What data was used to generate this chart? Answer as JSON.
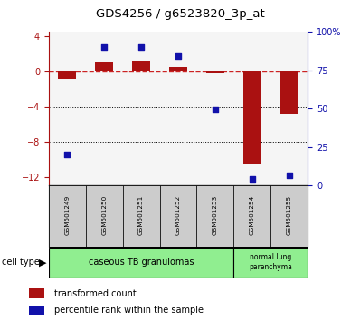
{
  "title": "GDS4256 / g6523820_3p_at",
  "samples": [
    "GSM501249",
    "GSM501250",
    "GSM501251",
    "GSM501252",
    "GSM501253",
    "GSM501254",
    "GSM501255"
  ],
  "red_bars": [
    -0.8,
    1.0,
    1.2,
    0.5,
    -0.2,
    -10.5,
    -4.8
  ],
  "blue_dots_left": [
    -9.5,
    2.8,
    2.8,
    1.8,
    -4.3,
    -12.2,
    -11.8
  ],
  "ylim_left": [
    -13,
    4.5
  ],
  "ylim_right": [
    0,
    100
  ],
  "yticks_left": [
    4,
    0,
    -4,
    -8,
    -12
  ],
  "yticks_right": [
    100,
    75,
    50,
    25,
    0
  ],
  "ytick_labels_right": [
    "100%",
    "75",
    "50",
    "25",
    "0"
  ],
  "legend_red": "transformed count",
  "legend_blue": "percentile rank within the sample",
  "bar_color": "#aa1111",
  "dot_color": "#1111aa",
  "dashed_line_color": "#cc2222",
  "cell_type_label": "cell type",
  "cell_group1_label": "caseous TB granulomas",
  "cell_group2_label": "normal lung\nparenchyma",
  "cell_color": "#90ee90",
  "sample_box_color": "#cccccc",
  "plot_bg": "#f5f5f5"
}
